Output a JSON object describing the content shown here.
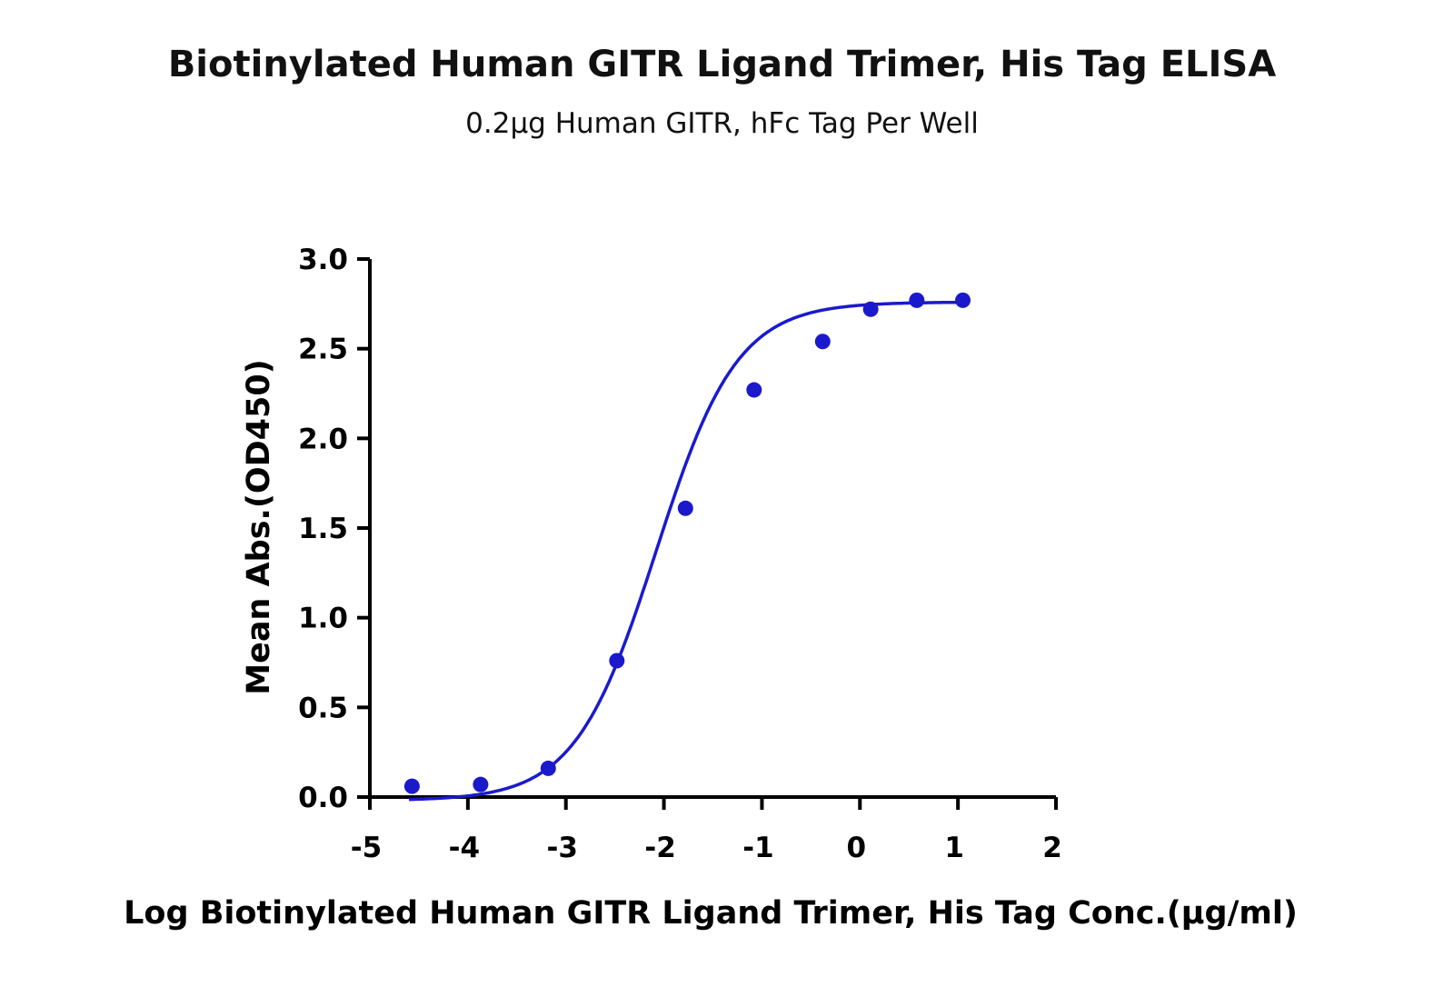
{
  "chart_data": {
    "type": "scatter",
    "title": "Biotinylated Human GITR Ligand Trimer, His Tag ELISA",
    "subtitle": "0.2μg Human GITR, hFc Tag Per Well",
    "xlabel": "Log Biotinylated Human GITR Ligand Trimer, His Tag Conc.(μg/ml)",
    "ylabel": "Mean Abs.(OD450)",
    "xlim": [
      -5,
      2
    ],
    "ylim": [
      0,
      3.0
    ],
    "x_ticks": [
      "-5",
      "-4",
      "-3",
      "-2",
      "-1",
      "0",
      "1",
      "2"
    ],
    "y_ticks": [
      "0.0",
      "0.5",
      "1.0",
      "1.5",
      "2.0",
      "2.5",
      "3.0"
    ],
    "series": [
      {
        "color": "#1a1acc",
        "x": [
          -4.57,
          -3.87,
          -3.18,
          -2.48,
          -1.78,
          -1.08,
          -0.38,
          0.11,
          0.58,
          1.05
        ],
        "y": [
          0.06,
          0.07,
          0.16,
          0.76,
          1.61,
          2.27,
          2.54,
          2.72,
          2.77,
          2.77
        ],
        "fit": "4PL sigmoid"
      }
    ],
    "grid": false,
    "legend": "none"
  }
}
